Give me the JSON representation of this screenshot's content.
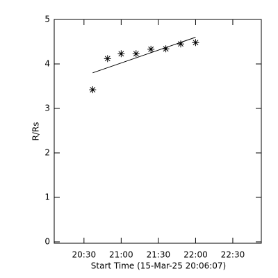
{
  "chart_data": {
    "type": "scatter",
    "x_label": "Start Time (15-Mar-25 20:06:07)",
    "y_label": "R/Rs",
    "xlim": [
      "20:06",
      "22:53"
    ],
    "xticks": [
      "20:30",
      "21:00",
      "21:30",
      "22:00",
      "22:30"
    ],
    "ylim": [
      0,
      5
    ],
    "yticks": [
      0,
      1,
      2,
      3,
      4,
      5
    ],
    "color": "#000000",
    "series": [
      {
        "x": [
          "20:37",
          "20:49",
          "21:00",
          "21:12",
          "21:24",
          "21:36",
          "21:48",
          "22:00"
        ],
        "values": [
          3.42,
          4.12,
          4.23,
          4.23,
          4.33,
          4.34,
          4.45,
          4.48
        ]
      }
    ],
    "fit": {
      "x": [
        "20:37",
        "22:00"
      ],
      "values": [
        3.8,
        4.6
      ]
    }
  }
}
